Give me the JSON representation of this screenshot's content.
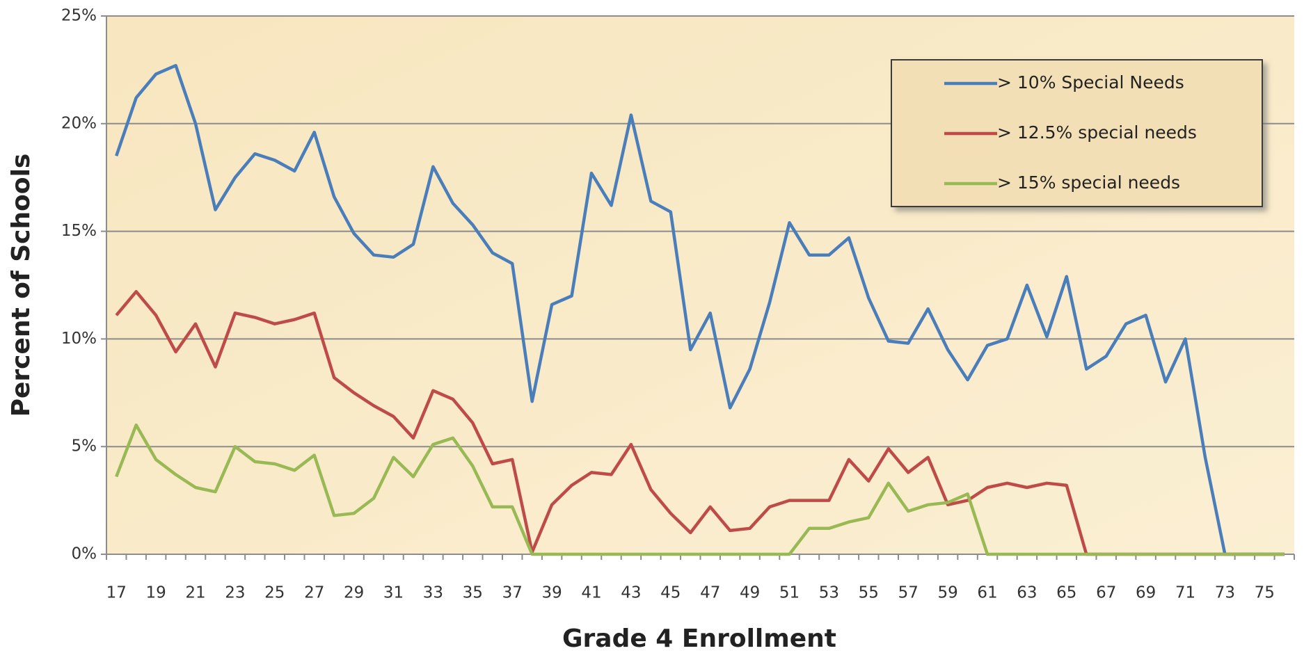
{
  "chart_data": {
    "type": "line",
    "xlabel": "Grade 4 Enrollment",
    "ylabel": "Percent of Schools",
    "categories": [
      17,
      null,
      19,
      null,
      21,
      null,
      23,
      null,
      25,
      null,
      27,
      null,
      29,
      null,
      31,
      null,
      33,
      null,
      35,
      null,
      37,
      null,
      39,
      null,
      41,
      null,
      43,
      null,
      45,
      null,
      47,
      null,
      49,
      null,
      51,
      null,
      53,
      null,
      55,
      null,
      57,
      null,
      59,
      null,
      61,
      null,
      63,
      null,
      65,
      null,
      67,
      null,
      69,
      null,
      71,
      null,
      73,
      null,
      75,
      null
    ],
    "series": [
      {
        "name": "> 10% Special Needs",
        "color": "#4a7ebb",
        "values": [
          18.5,
          21.2,
          22.3,
          22.7,
          20,
          16,
          17.5,
          18.6,
          18.3,
          17.8,
          19.6,
          16.6,
          14.9,
          13.9,
          13.8,
          14.4,
          18,
          16.3,
          15.3,
          14,
          13.5,
          7.1,
          11.6,
          12,
          17.7,
          16.2,
          20.4,
          16.4,
          15.9,
          9.5,
          11.2,
          6.8,
          8.6,
          11.7,
          15.4,
          13.9,
          13.9,
          14.7,
          11.9,
          9.9,
          9.8,
          11.4,
          9.5,
          8.1,
          9.7,
          10,
          12.5,
          10.1,
          12.9,
          8.6,
          9.2,
          10.7,
          11.1,
          8,
          10,
          4.5,
          0,
          0,
          0,
          0
        ]
      },
      {
        "name": "> 12.5% special needs",
        "color": "#be4b48",
        "values": [
          11.1,
          12.2,
          11.1,
          9.4,
          10.7,
          8.7,
          11.2,
          11,
          10.7,
          10.9,
          11.2,
          8.2,
          7.5,
          6.9,
          6.4,
          5.4,
          7.6,
          7.2,
          6.1,
          4.2,
          4.4,
          0.1,
          2.3,
          3.2,
          3.8,
          3.7,
          5.1,
          3,
          1.9,
          1,
          2.2,
          1.1,
          1.2,
          2.2,
          2.5,
          2.5,
          2.5,
          4.4,
          3.4,
          4.9,
          3.8,
          4.5,
          2.3,
          2.5,
          3.1,
          3.3,
          3.1,
          3.3,
          3.2,
          0,
          0,
          0,
          0,
          0,
          0,
          0,
          0,
          0,
          0,
          0
        ]
      },
      {
        "name": "> 15% special needs",
        "color": "#98b954",
        "values": [
          3.6,
          6,
          4.4,
          3.7,
          3.1,
          2.9,
          5,
          4.3,
          4.2,
          3.9,
          4.6,
          1.8,
          1.9,
          2.6,
          4.5,
          3.6,
          5.1,
          5.4,
          4.1,
          2.2,
          2.2,
          0,
          0,
          0,
          0,
          0,
          0,
          0,
          0,
          0,
          0,
          0,
          0,
          0,
          0,
          1.2,
          1.2,
          1.5,
          1.7,
          3.3,
          2,
          2.3,
          2.4,
          2.8,
          0,
          0,
          0,
          0,
          0,
          0,
          0,
          0,
          0,
          0,
          0,
          0,
          0,
          0,
          0,
          0
        ]
      }
    ],
    "ylim": [
      0,
      25
    ],
    "yticks": [
      {
        "value": 0,
        "label": "0%"
      },
      {
        "value": 5,
        "label": "5%"
      },
      {
        "value": 10,
        "label": "10%"
      },
      {
        "value": 15,
        "label": "15%"
      },
      {
        "value": 20,
        "label": "20%"
      },
      {
        "value": 25,
        "label": "25%"
      }
    ],
    "grid": true,
    "legend": "upper right"
  }
}
